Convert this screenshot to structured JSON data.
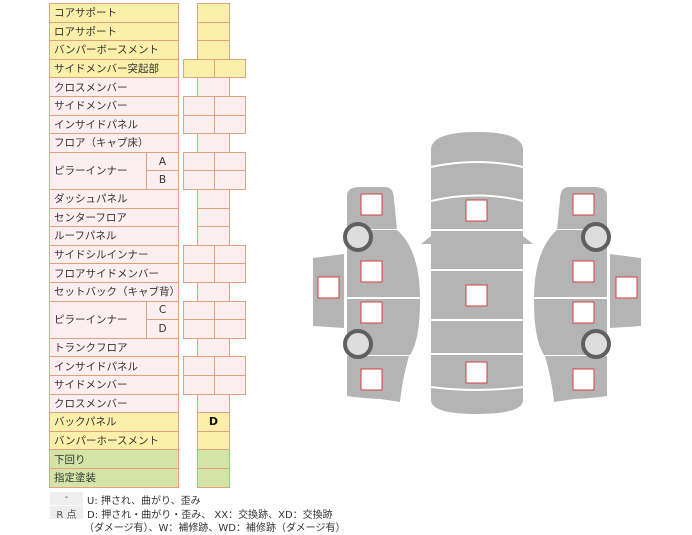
{
  "rows": [
    {
      "label": "コアサポート",
      "color": "y",
      "cells": 1,
      "value": ""
    },
    {
      "label": "ロアサポート",
      "color": "y",
      "cells": 1,
      "value": ""
    },
    {
      "label": "バンパーボースメント",
      "color": "y",
      "cells": 1,
      "value": ""
    },
    {
      "label": "サイドメンバー突起部",
      "color": "y",
      "cells": 2,
      "value": ""
    },
    {
      "label": "クロスメンバー",
      "color": "p",
      "cells": 1,
      "value": ""
    },
    {
      "label": "サイドメンバー",
      "color": "p",
      "cells": 2,
      "value": ""
    },
    {
      "label": "インサイドパネル",
      "color": "p",
      "cells": 2,
      "value": ""
    },
    {
      "label": "フロア（キャブ床）",
      "color": "p",
      "cells": 1,
      "value": ""
    },
    {
      "label": "ピラーインナー",
      "sub": "A",
      "color": "p",
      "cells": 2,
      "value": ""
    },
    {
      "label": "",
      "sub": "B",
      "color": "p",
      "cells": 2,
      "value": ""
    },
    {
      "label": "ダッシュパネル",
      "color": "p",
      "cells": 1,
      "value": ""
    },
    {
      "label": "センターフロア",
      "color": "p",
      "cells": 1,
      "value": ""
    },
    {
      "label": "ルーフパネル",
      "color": "p",
      "cells": 1,
      "value": ""
    },
    {
      "label": "サイドシルインナー",
      "color": "p",
      "cells": 2,
      "value": ""
    },
    {
      "label": "フロアサイドメンバー",
      "color": "p",
      "cells": 2,
      "value": ""
    },
    {
      "label": "セットバック（キャブ背）",
      "color": "p",
      "cells": 1,
      "value": ""
    },
    {
      "label": "ピラーインナー",
      "sub": "C",
      "color": "p",
      "cells": 2,
      "value": ""
    },
    {
      "label": "",
      "sub": "D",
      "color": "p",
      "cells": 2,
      "value": ""
    },
    {
      "label": "トランクフロア",
      "color": "p",
      "cells": 1,
      "value": ""
    },
    {
      "label": "インサイドパネル",
      "color": "p",
      "cells": 2,
      "value": ""
    },
    {
      "label": "サイドメンバー",
      "color": "p",
      "cells": 2,
      "value": ""
    },
    {
      "label": "クロスメンバー",
      "color": "p",
      "cells": 1,
      "value": ""
    },
    {
      "label": "バックパネル",
      "color": "y",
      "cells": 1,
      "value": "D"
    },
    {
      "label": "バンパーホースメント",
      "color": "y",
      "cells": 1,
      "value": ""
    },
    {
      "label": "下回り",
      "color": "g",
      "cells": 1,
      "value": ""
    },
    {
      "label": "指定塗装",
      "color": "g",
      "cells": 1,
      "value": ""
    }
  ],
  "legend": [
    {
      "key": "-",
      "text": "U: 押され、曲がり、歪み"
    },
    {
      "key": "R 点",
      "text": "D: 押され・曲がり・歪み、 XX：交換跡、XD：交換跡",
      "text2": "（ダメージ有）、W：補修跡、WD：補修跡（ダメージ有）"
    }
  ],
  "colors": {
    "body": "#b4b4b4",
    "marker_border": "#d04040",
    "tire": "#606060"
  }
}
